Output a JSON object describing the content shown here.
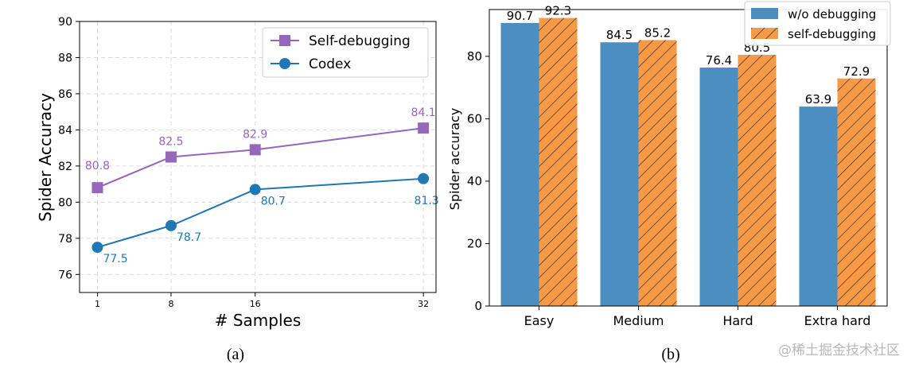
{
  "chart_data": [
    {
      "type": "line",
      "xlabel": "# Samples",
      "ylabel": "Spider Accuracy",
      "caption": "(a)",
      "x": [
        1,
        8,
        16,
        32
      ],
      "x_tick_labels": [
        "1",
        "8",
        "16",
        "32"
      ],
      "ylim": [
        75,
        90
      ],
      "y_ticks": [
        76,
        78,
        80,
        82,
        84,
        86,
        88,
        90
      ],
      "grid": true,
      "legend_position": "top-right",
      "series": [
        {
          "name": "Self-debugging",
          "marker": "square",
          "color": "#9467bd",
          "values": [
            80.8,
            82.5,
            82.9,
            84.1
          ],
          "labels": [
            "80.8",
            "82.5",
            "82.9",
            "84.1"
          ]
        },
        {
          "name": "Codex",
          "marker": "circle",
          "color": "#1f77b4",
          "values": [
            77.5,
            78.7,
            80.7,
            81.3
          ],
          "labels": [
            "77.5",
            "78.7",
            "80.7",
            "81.3"
          ]
        }
      ]
    },
    {
      "type": "bar",
      "ylabel": "Spider accuracy",
      "caption": "(b)",
      "categories": [
        "Easy",
        "Medium",
        "Hard",
        "Extra hard"
      ],
      "ylim": [
        0,
        95
      ],
      "y_ticks": [
        0,
        20,
        40,
        60,
        80
      ],
      "grid": false,
      "legend_position": "top-right",
      "series": [
        {
          "name": "w/o debugging",
          "color": "#4b8fc2",
          "hatch": false,
          "values": [
            90.7,
            84.5,
            76.4,
            63.9
          ],
          "labels": [
            "90.7",
            "84.5",
            "76.4",
            "63.9"
          ]
        },
        {
          "name": "self-debugging",
          "color": "#f79a47",
          "hatch": true,
          "values": [
            92.3,
            85.2,
            80.5,
            72.9
          ],
          "labels": [
            "92.3",
            "85.2",
            "80.5",
            "72.9"
          ]
        }
      ]
    }
  ],
  "watermark": "@稀土掘金技术社区"
}
